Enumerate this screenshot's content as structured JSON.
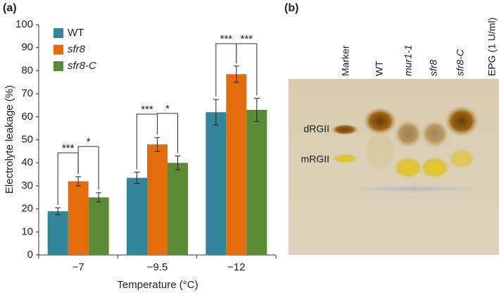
{
  "chart_data": {
    "type": "bar",
    "panel_label": "(a)",
    "ylabel": "Electrolyte leakage (%)",
    "xlabel": "Temperature (°C)",
    "categories": [
      "−7",
      "−9.5",
      "−12"
    ],
    "series": [
      {
        "name": "WT",
        "color": "#31869b",
        "values": [
          19,
          33.5,
          62
        ],
        "errors": [
          1.5,
          2.5,
          5.5
        ]
      },
      {
        "name": "sfr8",
        "color": "#e46c0a",
        "values": [
          32,
          48,
          78.5
        ],
        "errors": [
          2,
          3,
          3.5
        ]
      },
      {
        "name": "sfr8-C",
        "color": "#5b8c35",
        "values": [
          25,
          40,
          63
        ],
        "errors": [
          2,
          3,
          5
        ]
      }
    ],
    "ylim": [
      0,
      100
    ],
    "yticks": [
      0,
      10,
      20,
      30,
      40,
      50,
      60,
      70,
      80,
      90,
      100
    ],
    "legend": "upper-left",
    "annotations": [
      {
        "text": "***"
      },
      {
        "text": "*"
      },
      {
        "text": "***"
      },
      {
        "text": "*"
      },
      {
        "text": "***"
      },
      {
        "text": "***"
      }
    ]
  },
  "gel": {
    "panel_label": "(b)",
    "lanes": [
      "Marker",
      "WT",
      "mur1-1",
      "sfr8",
      "sfr8-C",
      "EPG (1 U/ml)"
    ],
    "bands": [
      "dRGII",
      "mRGII"
    ]
  }
}
